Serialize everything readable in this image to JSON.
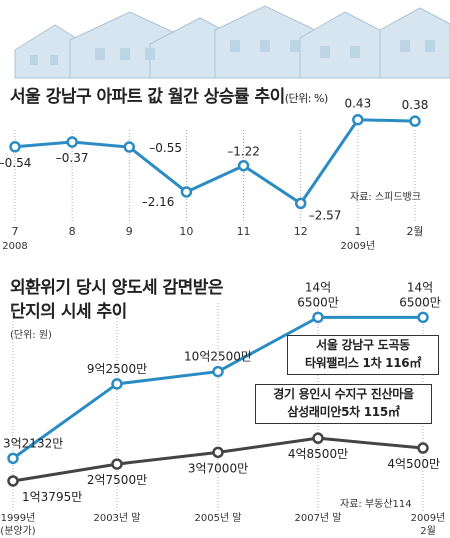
{
  "chart1": {
    "title": "서울 강남구 아파트 값 월간 상승률 추이",
    "unit": "(단위: %)",
    "source": "자료: 스피드뱅크",
    "x_labels": [
      {
        "top": "7",
        "bottom": "2008"
      },
      {
        "top": "8",
        "bottom": ""
      },
      {
        "top": "9",
        "bottom": ""
      },
      {
        "top": "10",
        "bottom": ""
      },
      {
        "top": "11",
        "bottom": ""
      },
      {
        "top": "12",
        "bottom": ""
      },
      {
        "top": "1",
        "bottom": "2009년"
      },
      {
        "top": "2월",
        "bottom": ""
      }
    ],
    "value_labels": [
      "–0.54",
      "–0.37",
      "–0.55",
      "–2.16",
      "–1.22",
      "–2.57",
      "0.43",
      "0.38"
    ]
  },
  "chart2": {
    "title_line1": "외환위기 당시 양도세 감면받은",
    "title_line2": "단지의 시세 추이",
    "unit": "(단위: 원)",
    "source": "자료: 부동산114",
    "x_labels": [
      {
        "top": "1999년",
        "bottom": "(분양가)"
      },
      {
        "top": "2003년 말",
        "bottom": ""
      },
      {
        "top": "2005년 말",
        "bottom": ""
      },
      {
        "top": "2007년 말",
        "bottom": ""
      },
      {
        "top": "2009년",
        "bottom": "2월"
      }
    ],
    "series_a_name_line1": "서울 강남구 도곡동",
    "series_a_name_line2": "타워팰리스 1차 116㎡",
    "series_b_name_line1": "경기 용인시 수지구  진산마을",
    "series_b_name_line2": "삼성래미안5차 115㎡",
    "series_a_labels": [
      {
        "l1": "3억2132만",
        "l2": ""
      },
      {
        "l1": "9억2500만",
        "l2": ""
      },
      {
        "l1": "10억2500만",
        "l2": ""
      },
      {
        "l1": "14억",
        "l2": "6500만"
      },
      {
        "l1": "14억",
        "l2": "6500만"
      }
    ],
    "series_b_labels": [
      "1억3795만",
      "2억7500만",
      "3억7000만",
      "4억8500만",
      "4억500만"
    ]
  },
  "chart_data": [
    {
      "type": "line",
      "title": "서울 강남구 아파트 값 월간 상승률 추이",
      "unit": "%",
      "categories": [
        "2008-07",
        "2008-08",
        "2008-09",
        "2008-10",
        "2008-11",
        "2008-12",
        "2009-01",
        "2009-02"
      ],
      "series": [
        {
          "values": [
            -0.54,
            -0.37,
            -0.55,
            -2.16,
            -1.22,
            -2.57,
            0.43,
            0.38
          ]
        }
      ],
      "ylim": [
        -2.7,
        0.6
      ],
      "grid": false,
      "color": "#2b8cc4"
    },
    {
      "type": "line",
      "title": "외환위기 당시 양도세 감면받은 단지의 시세 추이",
      "unit": "원",
      "categories": [
        "1999년 (분양가)",
        "2003년 말",
        "2005년 말",
        "2007년 말",
        "2009년 2월"
      ],
      "series": [
        {
          "name": "서울 강남구 도곡동 타워팰리스 1차 116㎡",
          "values": [
            321320000,
            925000000,
            1025000000,
            1465000000,
            1465000000
          ],
          "color": "#2b8cc4"
        },
        {
          "name": "경기 용인시 수지구 진산마을 삼성래미안5차 115㎡",
          "values": [
            137950000,
            275000000,
            370000000,
            485000000,
            405000000
          ],
          "color": "#444444"
        }
      ],
      "ylim": [
        0,
        1500000000
      ],
      "grid": false
    }
  ]
}
